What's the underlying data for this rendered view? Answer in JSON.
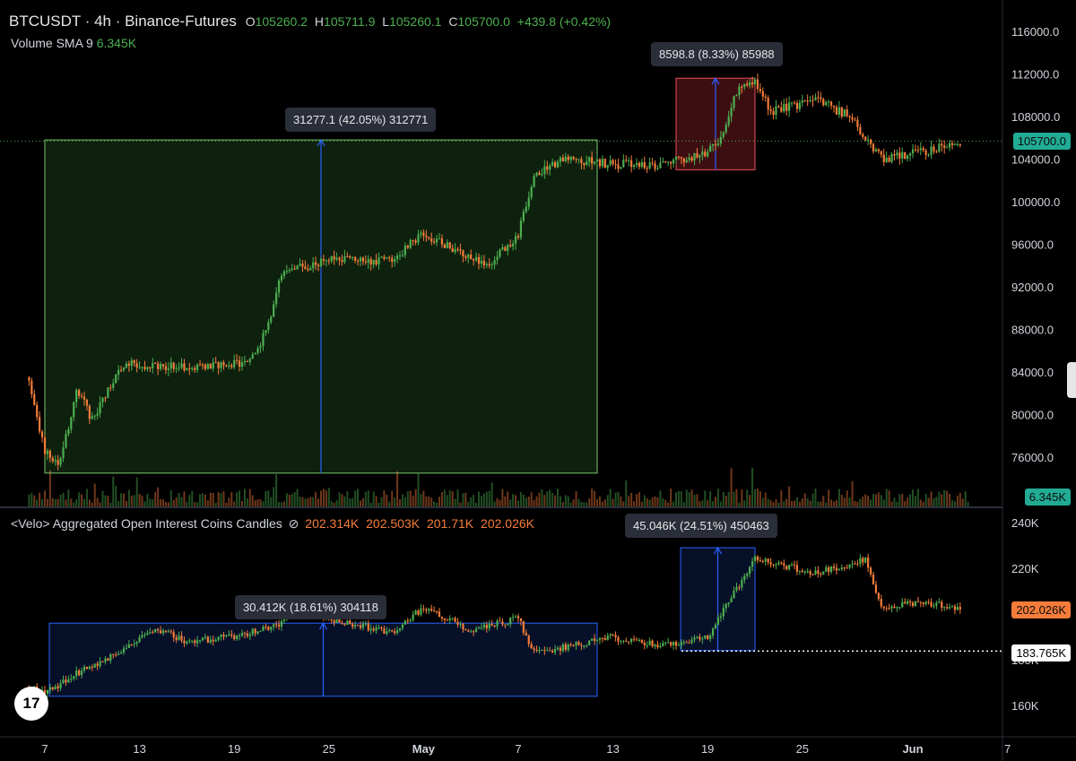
{
  "header": {
    "symbol": "BTCUSDT · 4h · Binance-Futures",
    "o_label": "O",
    "o": "105260.2",
    "h_label": "H",
    "h": "105711.9",
    "l_label": "L",
    "l": "105260.1",
    "c_label": "C",
    "c": "105700.0",
    "change": "+439.8 (+0.42%)",
    "volume_label": "Volume SMA 9",
    "volume_value": "6.345K"
  },
  "oi_header": {
    "label": "<Velo> Aggregated Open Interest Coins Candles",
    "icon": "eye-slash-icon",
    "o": "202.314K",
    "h": "202.503K",
    "l": "201.71K",
    "c": "202.026K"
  },
  "measurements": {
    "price_big": "31277.1 (42.05%) 312771",
    "price_small": "8598.8 (8.33%) 85988",
    "oi_big": "30.412K (18.61%) 304118",
    "oi_small": "45.046K (24.51%) 450463"
  },
  "badges": {
    "price": "105700.0",
    "volume": "6.345K",
    "oi_last": "202.026K",
    "oi_level": "183.765K"
  },
  "chart_data": [
    {
      "type": "candlestick",
      "title": "BTCUSDT · 4h · Binance-Futures",
      "y_ticks": [
        "116000.0",
        "112000.0",
        "108000.0",
        "104000.0",
        "100000.0",
        "96000.0",
        "92000.0",
        "88000.0",
        "84000.0",
        "80000.0",
        "76000.0"
      ],
      "ylim": [
        74000,
        117500
      ],
      "x_ticks": [
        "7",
        "13",
        "19",
        "25",
        "May",
        "7",
        "13",
        "19",
        "25",
        "Jun",
        "7"
      ],
      "close_path": [
        {
          "date": "Apr 6",
          "close": 83500
        },
        {
          "date": "Apr 7",
          "close": 76500
        },
        {
          "date": "Apr 8",
          "close": 75500
        },
        {
          "date": "Apr 9",
          "close": 82500
        },
        {
          "date": "Apr 10",
          "close": 79500
        },
        {
          "date": "Apr 12",
          "close": 84800
        },
        {
          "date": "Apr 16",
          "close": 84500
        },
        {
          "date": "Apr 20",
          "close": 84800
        },
        {
          "date": "Apr 21",
          "close": 87800
        },
        {
          "date": "Apr 22",
          "close": 93200
        },
        {
          "date": "Apr 25",
          "close": 94600
        },
        {
          "date": "Apr 29",
          "close": 94500
        },
        {
          "date": "May 1",
          "close": 97000
        },
        {
          "date": "May 5",
          "close": 94000
        },
        {
          "date": "May 7",
          "close": 97000
        },
        {
          "date": "May 8",
          "close": 102500
        },
        {
          "date": "May 10",
          "close": 104000
        },
        {
          "date": "May 13",
          "close": 103500
        },
        {
          "date": "May 16",
          "close": 103500
        },
        {
          "date": "May 19",
          "close": 104500
        },
        {
          "date": "May 20",
          "close": 106500
        },
        {
          "date": "May 21",
          "close": 111000
        },
        {
          "date": "May 22",
          "close": 111500
        },
        {
          "date": "May 23",
          "close": 108500
        },
        {
          "date": "May 26",
          "close": 109500
        },
        {
          "date": "May 28",
          "close": 108000
        },
        {
          "date": "May 30",
          "close": 104000
        },
        {
          "date": "Jun 2",
          "close": 104800
        },
        {
          "date": "Jun 4",
          "close": 105700
        }
      ],
      "ranges": [
        {
          "label": "31277.1 (42.05%) 312771",
          "from": "Apr 7",
          "to": "May 12",
          "low": 74500,
          "high": 105800
        },
        {
          "label": "8598.8 (8.33%) 85988",
          "from": "May 17",
          "to": "May 22",
          "low": 103000,
          "high": 111600
        }
      ],
      "last_price": 105700.0,
      "volume_sma": 6.345
    },
    {
      "type": "candlestick",
      "title": "<Velo> Aggregated Open Interest Coins Candles",
      "y_ticks": [
        "240K",
        "220K",
        "180K",
        "160K"
      ],
      "ylim": [
        150,
        246
      ],
      "close_path": [
        {
          "date": "Apr 6",
          "close": 168
        },
        {
          "date": "Apr 7",
          "close": 165
        },
        {
          "date": "Apr 9",
          "close": 174
        },
        {
          "date": "Apr 12",
          "close": 184
        },
        {
          "date": "Apr 14",
          "close": 194
        },
        {
          "date": "Apr 16",
          "close": 188
        },
        {
          "date": "Apr 19",
          "close": 190
        },
        {
          "date": "Apr 22",
          "close": 196
        },
        {
          "date": "Apr 23",
          "close": 205
        },
        {
          "date": "Apr 25",
          "close": 198
        },
        {
          "date": "Apr 29",
          "close": 192
        },
        {
          "date": "May 1",
          "close": 203
        },
        {
          "date": "May 4",
          "close": 193
        },
        {
          "date": "May 7",
          "close": 198
        },
        {
          "date": "May 8",
          "close": 183
        },
        {
          "date": "May 11",
          "close": 187
        },
        {
          "date": "May 13",
          "close": 190
        },
        {
          "date": "May 16",
          "close": 186
        },
        {
          "date": "May 19",
          "close": 190
        },
        {
          "date": "May 21",
          "close": 213
        },
        {
          "date": "May 22",
          "close": 224
        },
        {
          "date": "May 26",
          "close": 218
        },
        {
          "date": "May 29",
          "close": 224
        },
        {
          "date": "May 30",
          "close": 203
        },
        {
          "date": "Jun 2",
          "close": 205
        },
        {
          "date": "Jun 4",
          "close": 202
        }
      ],
      "ranges": [
        {
          "label": "30.412K (18.61%) 304118",
          "from": "Apr 7",
          "to": "May 12",
          "low": 164,
          "high": 196
        },
        {
          "label": "45.046K (24.51%) 450463",
          "from": "May 17",
          "to": "May 22",
          "low": 184,
          "high": 229
        }
      ],
      "last_value": 202.026,
      "level": 183.765
    }
  ]
}
